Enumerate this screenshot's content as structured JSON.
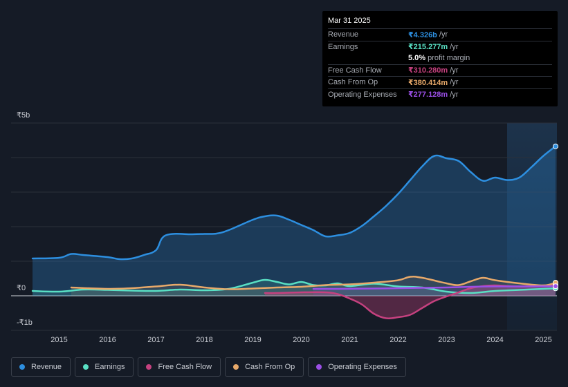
{
  "tooltip": {
    "date": "Mar 31 2025",
    "rows": [
      {
        "label": "Revenue",
        "value": "₹4.326b",
        "unit": "/yr",
        "color": "#2d8fe0"
      },
      {
        "label": "Earnings",
        "value": "₹215.277m",
        "unit": "/yr",
        "color": "#59e0c4"
      },
      {
        "label": "",
        "value": "5.0%",
        "unit": "profit margin",
        "color": "#ffffff"
      },
      {
        "label": "Free Cash Flow",
        "value": "₹310.280m",
        "unit": "/yr",
        "color": "#c5417f"
      },
      {
        "label": "Cash From Op",
        "value": "₹380.414m",
        "unit": "/yr",
        "color": "#e8a96a"
      },
      {
        "label": "Operating Expenses",
        "value": "₹277.128m",
        "unit": "/yr",
        "color": "#9b4fe6"
      }
    ]
  },
  "legend": [
    {
      "label": "Revenue",
      "color": "#2d8fe0"
    },
    {
      "label": "Earnings",
      "color": "#59e0c4"
    },
    {
      "label": "Free Cash Flow",
      "color": "#c5417f"
    },
    {
      "label": "Cash From Op",
      "color": "#e8a96a"
    },
    {
      "label": "Operating Expenses",
      "color": "#9b4fe6"
    }
  ],
  "chart_data": {
    "type": "area",
    "y_tick_labels": [
      "₹5b",
      "₹0",
      "-₹1b"
    ],
    "y_ticks": [
      5,
      0,
      -1
    ],
    "ylim": [
      -1,
      5
    ],
    "xlim": [
      2014.45,
      2025.25
    ],
    "x_tick_labels": [
      "2015",
      "2016",
      "2017",
      "2018",
      "2019",
      "2020",
      "2021",
      "2022",
      "2023",
      "2024",
      "2025"
    ],
    "x_ticks": [
      2015,
      2016,
      2017,
      2018,
      2019,
      2020,
      2021,
      2022,
      2023,
      2024,
      2025
    ],
    "forecast_start": 2024.25,
    "series": [
      {
        "name": "Revenue",
        "color": "#2d8fe0",
        "fill": true,
        "x": [
          2014.45,
          2015.0,
          2015.25,
          2015.5,
          2016.0,
          2016.25,
          2016.5,
          2016.75,
          2017.0,
          2017.2,
          2017.75,
          2018.0,
          2018.25,
          2018.5,
          2019.0,
          2019.25,
          2019.5,
          2019.75,
          2020.0,
          2020.25,
          2020.5,
          2020.75,
          2021.0,
          2021.25,
          2021.5,
          2021.75,
          2022.0,
          2022.25,
          2022.5,
          2022.75,
          2023.0,
          2023.25,
          2023.5,
          2023.75,
          2024.0,
          2024.25,
          2024.5,
          2024.75,
          2025.0,
          2025.25
        ],
        "values": [
          1.08,
          1.1,
          1.21,
          1.18,
          1.12,
          1.06,
          1.08,
          1.18,
          1.32,
          1.75,
          1.78,
          1.79,
          1.8,
          1.9,
          2.2,
          2.3,
          2.32,
          2.2,
          2.05,
          1.9,
          1.72,
          1.75,
          1.82,
          2.02,
          2.3,
          2.6,
          2.95,
          3.35,
          3.75,
          4.05,
          3.98,
          3.9,
          3.58,
          3.33,
          3.42,
          3.35,
          3.42,
          3.72,
          4.05,
          4.326
        ]
      },
      {
        "name": "Earnings",
        "color": "#59e0c4",
        "fill": true,
        "x": [
          2014.45,
          2015.0,
          2015.5,
          2016.0,
          2016.5,
          2017.0,
          2017.5,
          2018.0,
          2018.5,
          2019.0,
          2019.25,
          2019.5,
          2019.75,
          2020.0,
          2020.25,
          2020.5,
          2020.75,
          2021.0,
          2021.5,
          2022.0,
          2022.5,
          2023.0,
          2023.5,
          2024.0,
          2024.5,
          2025.0,
          2025.25
        ],
        "values": [
          0.14,
          0.12,
          0.18,
          0.17,
          0.15,
          0.14,
          0.18,
          0.16,
          0.2,
          0.38,
          0.46,
          0.4,
          0.33,
          0.4,
          0.31,
          0.3,
          0.36,
          0.28,
          0.35,
          0.27,
          0.24,
          0.12,
          0.08,
          0.14,
          0.17,
          0.2,
          0.215
        ]
      },
      {
        "name": "Free Cash Flow",
        "color": "#c5417f",
        "fill": true,
        "x": [
          2019.25,
          2019.5,
          2020.0,
          2020.5,
          2020.75,
          2021.0,
          2021.25,
          2021.5,
          2021.75,
          2022.0,
          2022.25,
          2022.5,
          2022.75,
          2023.0,
          2023.25,
          2023.5,
          2023.75,
          2024.0,
          2024.5,
          2025.0,
          2025.25
        ],
        "values": [
          0.08,
          0.08,
          0.1,
          0.1,
          0.05,
          -0.08,
          -0.25,
          -0.52,
          -0.65,
          -0.62,
          -0.55,
          -0.35,
          -0.15,
          -0.02,
          0.1,
          0.22,
          0.28,
          0.3,
          0.27,
          0.3,
          0.31
        ]
      },
      {
        "name": "Cash From Op",
        "color": "#e8a96a",
        "fill": true,
        "x": [
          2015.25,
          2016.0,
          2016.5,
          2017.0,
          2017.5,
          2018.0,
          2018.5,
          2019.0,
          2019.5,
          2020.0,
          2020.5,
          2021.0,
          2021.5,
          2022.0,
          2022.25,
          2022.5,
          2023.0,
          2023.25,
          2023.5,
          2023.75,
          2024.0,
          2024.5,
          2025.0,
          2025.25
        ],
        "values": [
          0.24,
          0.2,
          0.22,
          0.27,
          0.32,
          0.24,
          0.19,
          0.21,
          0.24,
          0.26,
          0.31,
          0.33,
          0.38,
          0.45,
          0.55,
          0.52,
          0.36,
          0.31,
          0.42,
          0.52,
          0.45,
          0.36,
          0.3,
          0.38
        ]
      },
      {
        "name": "Operating Expenses",
        "color": "#9b4fe6",
        "fill": true,
        "x": [
          2020.25,
          2020.75,
          2021.5,
          2022.0,
          2022.5,
          2023.0,
          2023.5,
          2024.0,
          2024.5,
          2025.0,
          2025.25
        ],
        "values": [
          0.2,
          0.2,
          0.21,
          0.22,
          0.23,
          0.24,
          0.26,
          0.27,
          0.27,
          0.275,
          0.277
        ]
      }
    ]
  }
}
